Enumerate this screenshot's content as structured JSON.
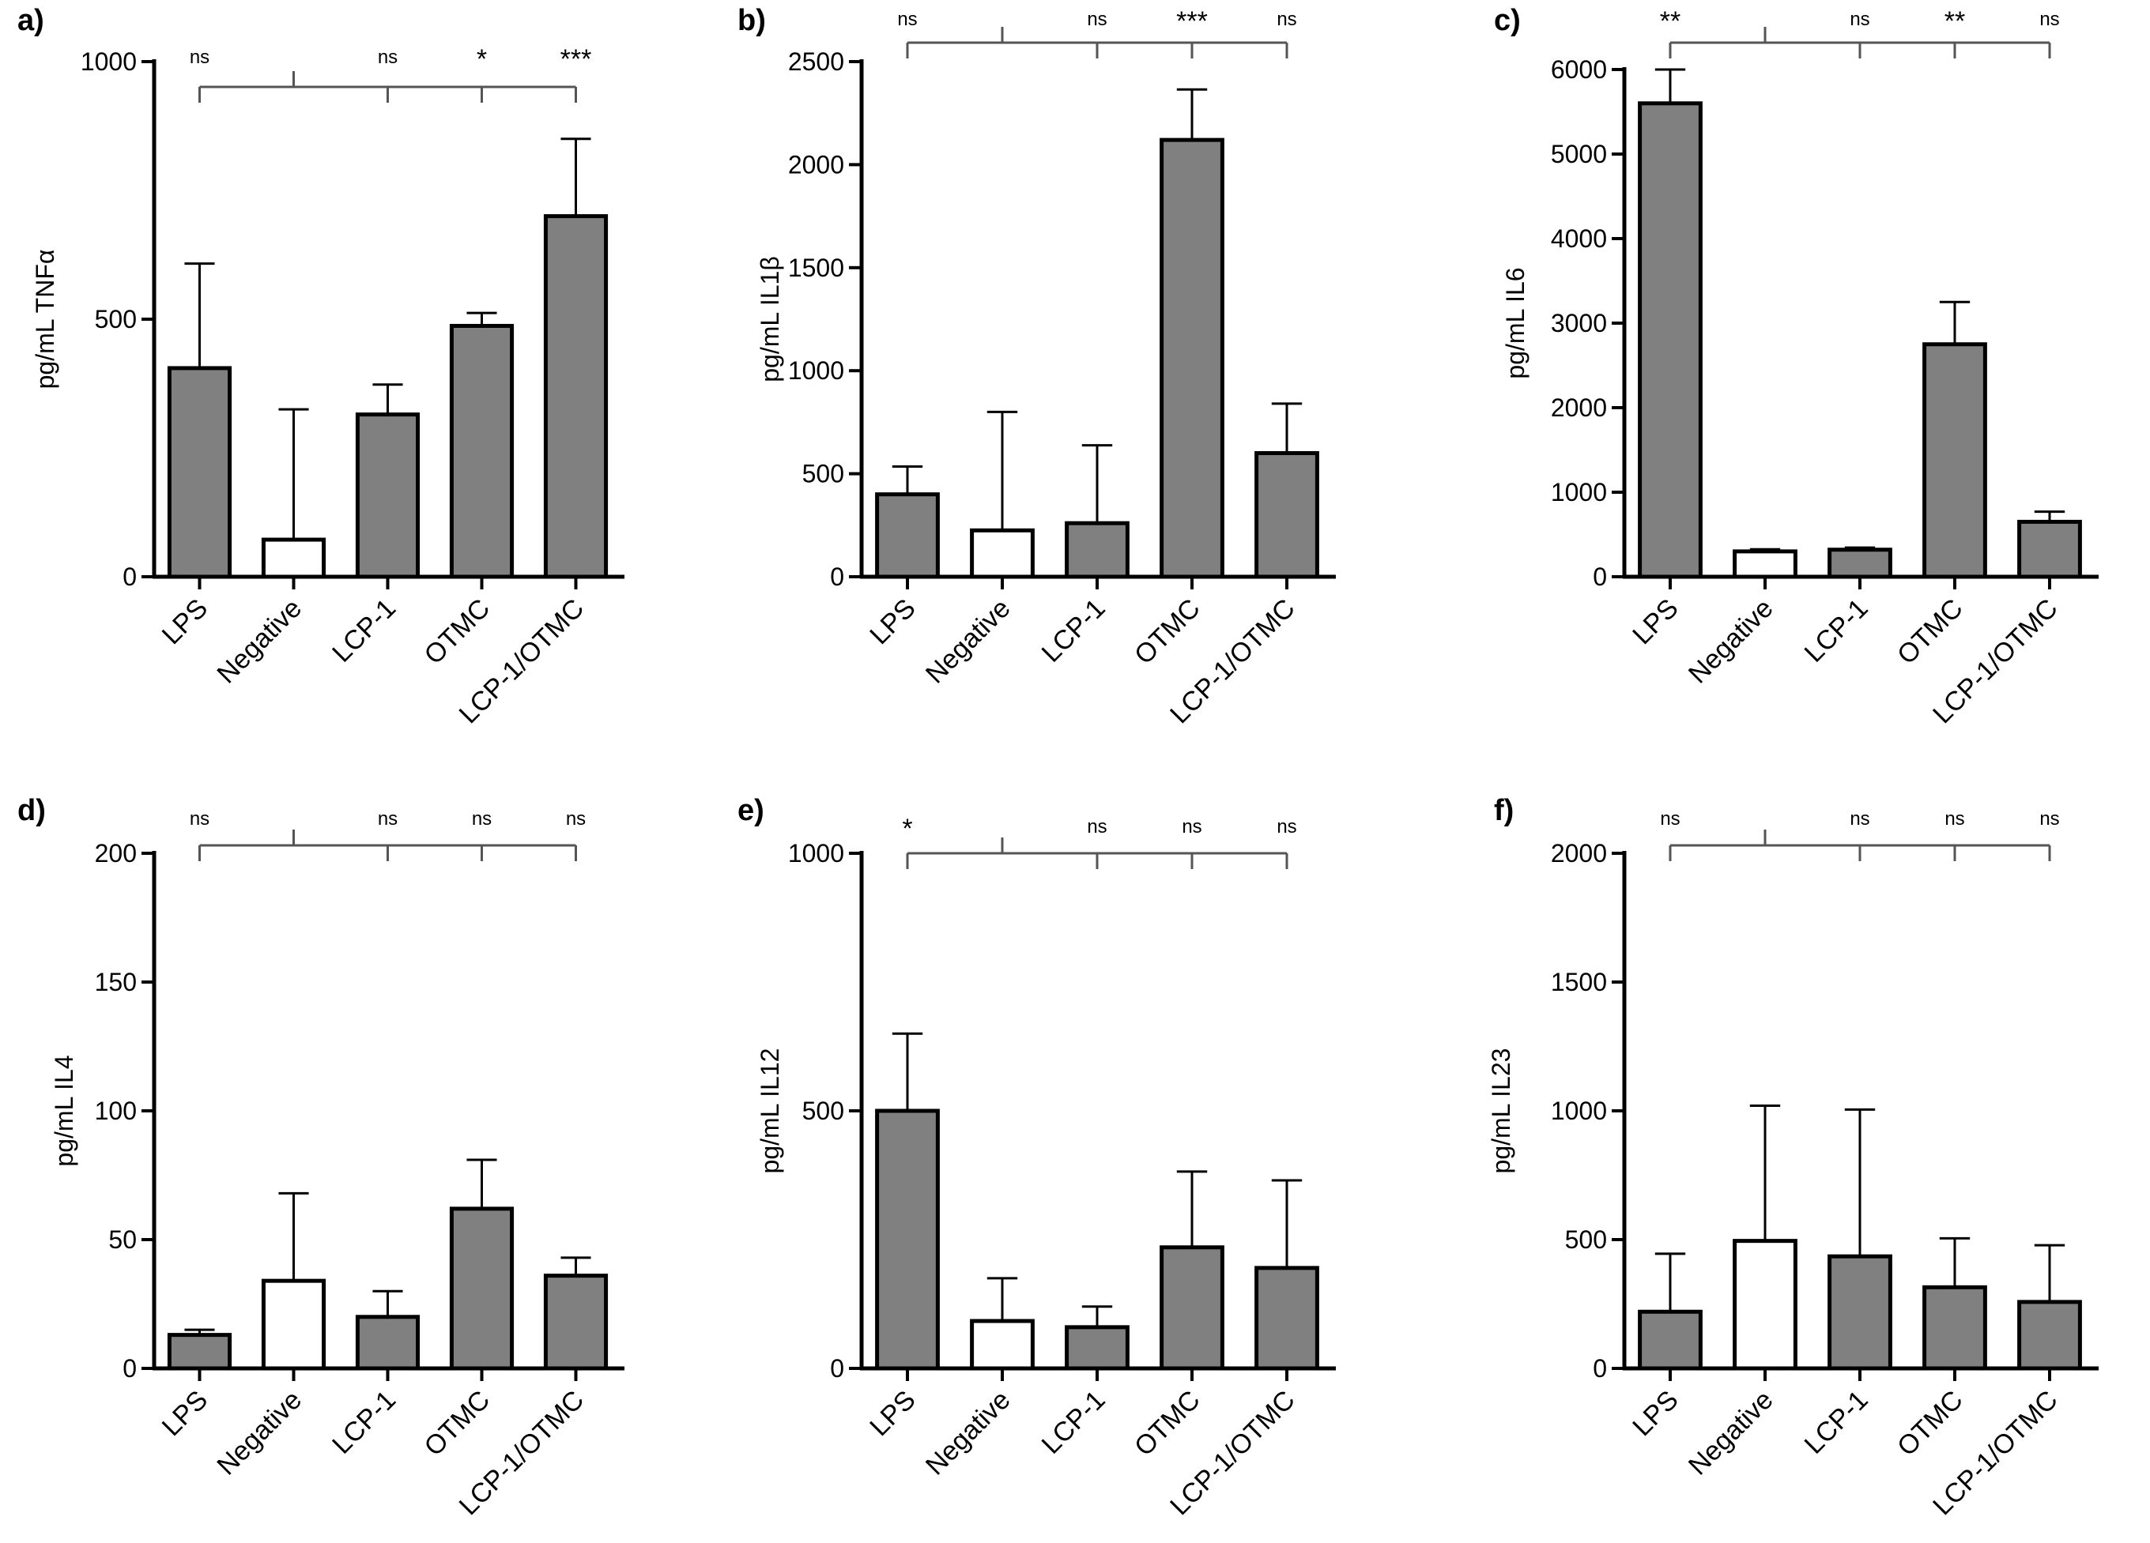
{
  "chart_data": [
    {
      "type": "bar",
      "panel_label": "a)",
      "categories": [
        "LPS",
        "Negative",
        "LCP-1",
        "OTMC",
        "LCP-1/OTMC"
      ],
      "values": [
        405,
        72,
        315,
        487,
        700
      ],
      "error_upper": [
        608,
        325,
        373,
        512,
        850
      ],
      "filled": [
        true,
        false,
        true,
        true,
        true
      ],
      "ylabel": "pg/mL TNFα",
      "ylim": [
        0,
        1000
      ],
      "yticks": [
        0,
        500,
        1000
      ],
      "significance": [
        "ns",
        "",
        "ns",
        "*",
        "***"
      ],
      "colors": {
        "filled": "#808080",
        "empty": "#ffffff",
        "stroke": "#000000",
        "bracket": "#555555"
      }
    },
    {
      "type": "bar",
      "panel_label": "b)",
      "categories": [
        "LPS",
        "Negative",
        "LCP-1",
        "OTMC",
        "LCP-1/OTMC"
      ],
      "values": [
        400,
        225,
        260,
        2120,
        600
      ],
      "error_upper": [
        535,
        800,
        638,
        2365,
        840
      ],
      "filled": [
        true,
        false,
        true,
        true,
        true
      ],
      "ylabel": "pg/mL IL1β",
      "ylim": [
        0,
        2500
      ],
      "yticks": [
        0,
        500,
        1000,
        1500,
        2000,
        2500
      ],
      "significance": [
        "ns",
        "",
        "ns",
        "***",
        "ns"
      ],
      "colors": {
        "filled": "#808080",
        "empty": "#ffffff",
        "stroke": "#000000",
        "bracket": "#555555"
      }
    },
    {
      "type": "bar",
      "panel_label": "c)",
      "categories": [
        "LPS",
        "Negative",
        "LCP-1",
        "OTMC",
        "LCP-1/OTMC"
      ],
      "values": [
        5600,
        300,
        320,
        2750,
        650
      ],
      "error_upper": [
        6000,
        325,
        345,
        3250,
        770
      ],
      "filled": [
        true,
        false,
        true,
        true,
        true
      ],
      "ylabel": "pg/mL IL6",
      "ylim": [
        0,
        6000
      ],
      "yticks": [
        0,
        1000,
        2000,
        3000,
        4000,
        5000,
        6000
      ],
      "significance": [
        "**",
        "",
        "ns",
        "**",
        "ns"
      ],
      "colors": {
        "filled": "#808080",
        "empty": "#ffffff",
        "stroke": "#000000",
        "bracket": "#555555"
      }
    },
    {
      "type": "bar",
      "panel_label": "d)",
      "categories": [
        "LPS",
        "Negative",
        "LCP-1",
        "OTMC",
        "LCP-1/OTMC"
      ],
      "values": [
        13,
        34,
        20,
        62,
        36
      ],
      "error_upper": [
        15,
        68,
        30,
        81,
        43
      ],
      "filled": [
        true,
        false,
        true,
        true,
        true
      ],
      "ylabel": "pg/mL IL4",
      "ylim": [
        0,
        200
      ],
      "yticks": [
        0,
        50,
        100,
        150,
        200
      ],
      "significance": [
        "ns",
        "",
        "ns",
        "ns",
        "ns"
      ],
      "colors": {
        "filled": "#808080",
        "empty": "#ffffff",
        "stroke": "#000000",
        "bracket": "#555555"
      }
    },
    {
      "type": "bar",
      "panel_label": "e)",
      "categories": [
        "LPS",
        "Negative",
        "LCP-1",
        "OTMC",
        "LCP-1/OTMC"
      ],
      "values": [
        500,
        92,
        80,
        235,
        195
      ],
      "error_upper": [
        650,
        175,
        120,
        382,
        365
      ],
      "filled": [
        true,
        false,
        true,
        true,
        true
      ],
      "ylabel": "pg/mL IL12",
      "ylim": [
        0,
        1000
      ],
      "yticks": [
        0,
        500,
        1000
      ],
      "significance": [
        "*",
        "",
        "ns",
        "ns",
        "ns"
      ],
      "colors": {
        "filled": "#808080",
        "empty": "#ffffff",
        "stroke": "#000000",
        "bracket": "#555555"
      }
    },
    {
      "type": "bar",
      "panel_label": "f)",
      "categories": [
        "LPS",
        "Negative",
        "LCP-1",
        "OTMC",
        "LCP-1/OTMC"
      ],
      "values": [
        220,
        495,
        435,
        315,
        258
      ],
      "error_upper": [
        445,
        1020,
        1005,
        505,
        478
      ],
      "filled": [
        true,
        false,
        true,
        true,
        true
      ],
      "ylabel": "pg/mL IL23",
      "ylim": [
        0,
        2000
      ],
      "yticks": [
        0,
        500,
        1000,
        1500,
        2000
      ],
      "significance": [
        "ns",
        "",
        "ns",
        "ns",
        "ns"
      ],
      "colors": {
        "filled": "#808080",
        "empty": "#ffffff",
        "stroke": "#000000",
        "bracket": "#555555"
      }
    }
  ]
}
